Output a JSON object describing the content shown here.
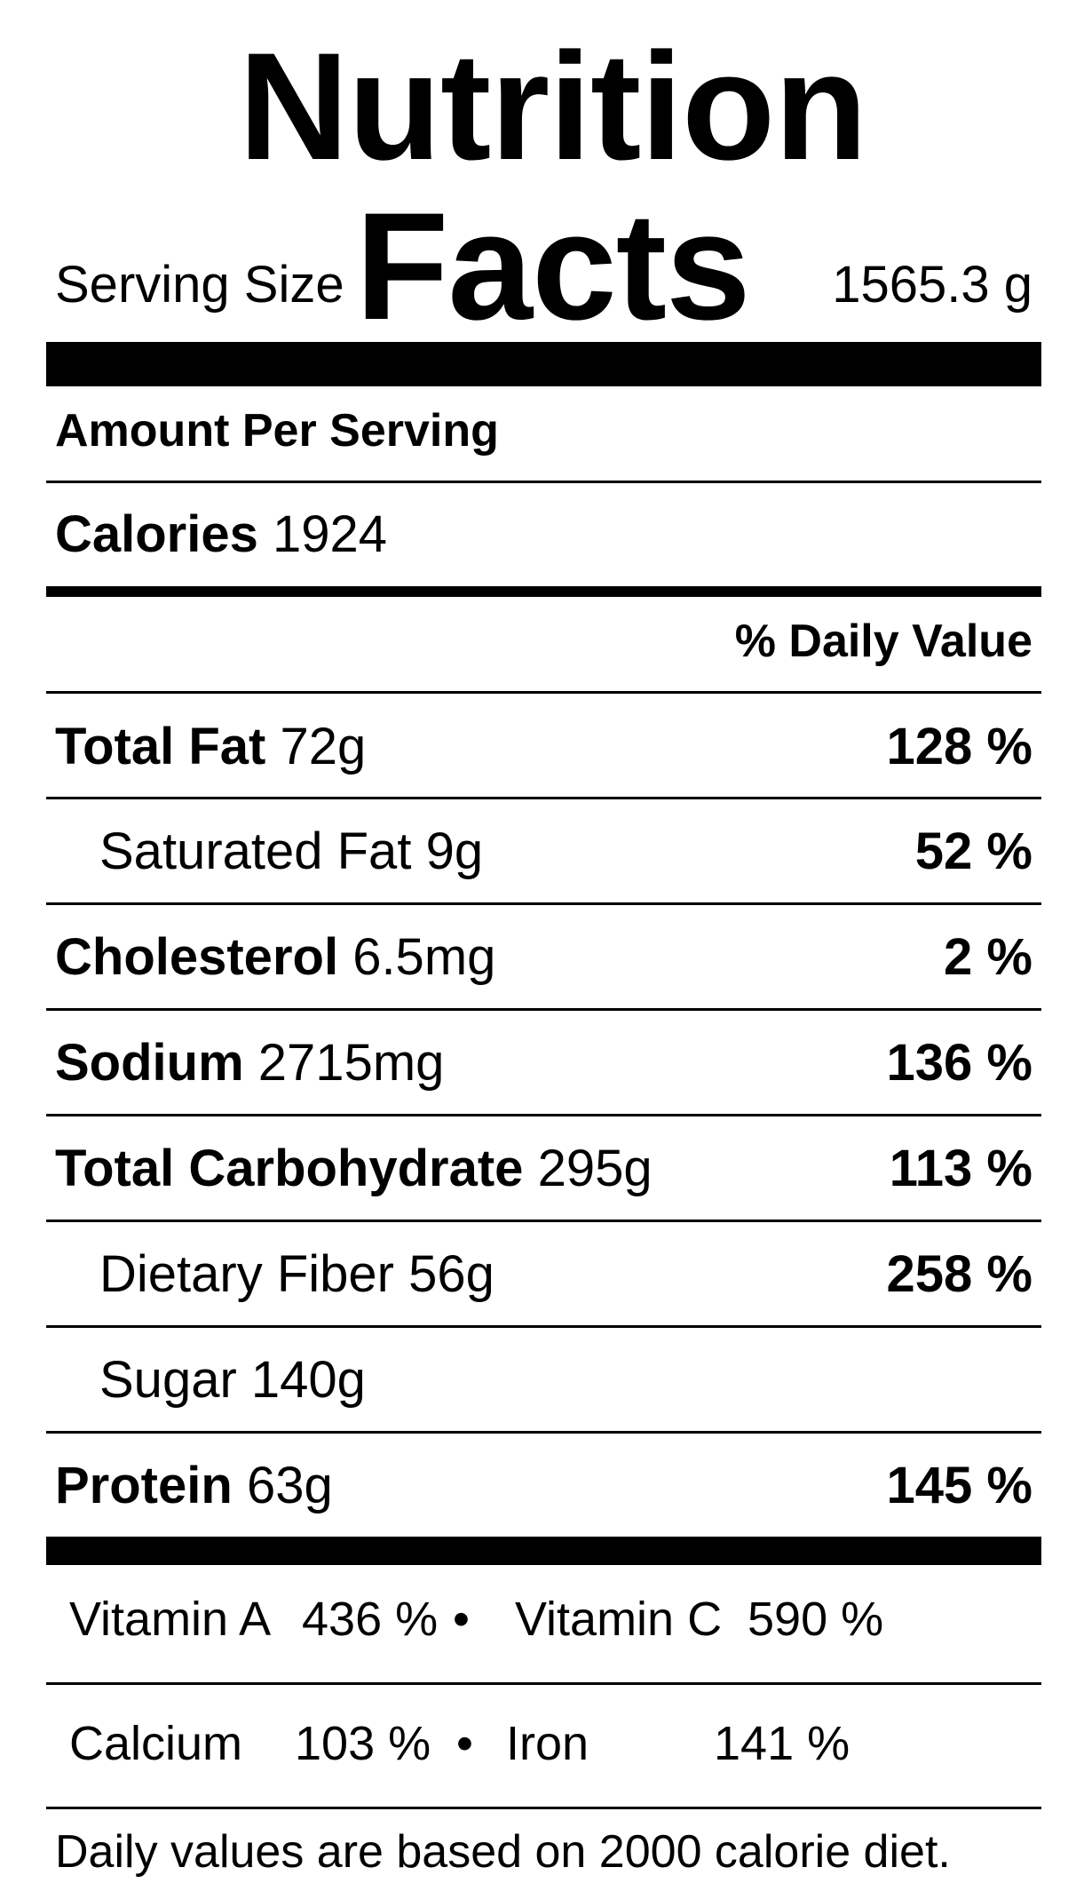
{
  "title": "Nutrition Facts",
  "serving": {
    "label": "Serving Size",
    "value": "1565.3 g"
  },
  "amount_per_serving": "Amount Per Serving",
  "calories": {
    "label": "Calories",
    "value": "1924"
  },
  "daily_value_header": "% Daily Value",
  "nutrients": [
    {
      "label": "Total Fat",
      "amount": "72g",
      "percent": "128 %"
    },
    {
      "label": "Saturated Fat",
      "amount": "9g",
      "percent": "52 %"
    },
    {
      "label": "Cholesterol",
      "amount": "6.5mg",
      "percent": "2 %"
    },
    {
      "label": "Sodium",
      "amount": "2715mg",
      "percent": "136 %"
    },
    {
      "label": "Total Carbohydrate",
      "amount": "295g",
      "percent": "113 %"
    },
    {
      "label": "Dietary Fiber",
      "amount": "56g",
      "percent": "258 %"
    },
    {
      "label": "Sugar",
      "amount": "140g",
      "percent": ""
    },
    {
      "label": "Protein",
      "amount": "63g",
      "percent": "145 %"
    }
  ],
  "vitamins": [
    {
      "label": "Vitamin A",
      "percent": "436 %"
    },
    {
      "label": "Vitamin C",
      "percent": "590 %"
    },
    {
      "label": "Calcium",
      "percent": "103 %"
    },
    {
      "label": "Iron",
      "percent": "141 %"
    }
  ],
  "separator": "•",
  "footnote": "Daily values are based on 2000 calorie diet."
}
